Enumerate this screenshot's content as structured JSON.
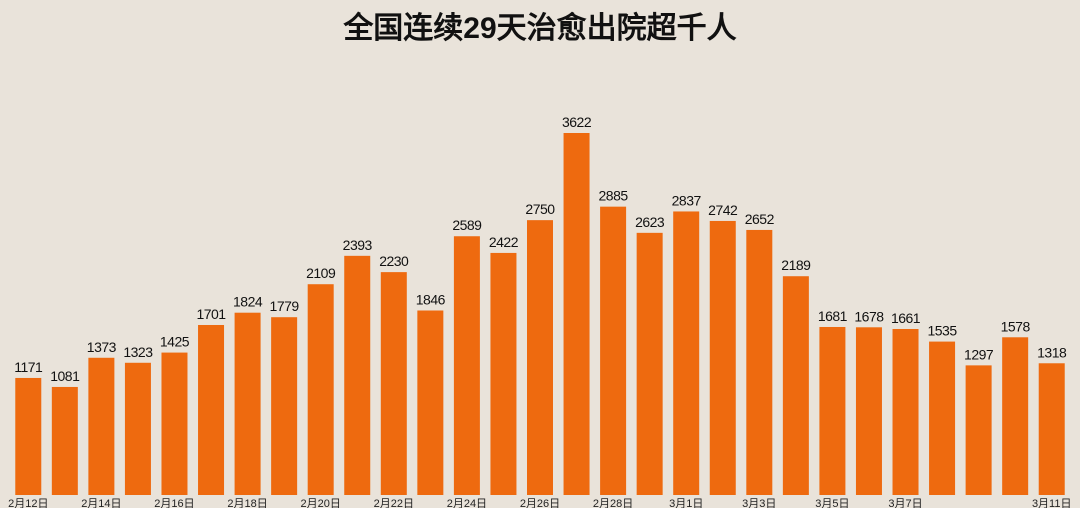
{
  "chart_data": {
    "type": "bar",
    "title": "全国连续29天治愈出院超千人",
    "categories": [
      "2月12日",
      null,
      "2月14日",
      null,
      "2月16日",
      null,
      "2月18日",
      null,
      "2月20日",
      null,
      "2月22日",
      null,
      "2月24日",
      null,
      "2月26日",
      null,
      "2月28日",
      null,
      "3月1日",
      null,
      "3月3日",
      null,
      "3月5日",
      null,
      "3月7日",
      null,
      null,
      null,
      "3月11日"
    ],
    "values": [
      1171,
      1081,
      1373,
      1323,
      1425,
      1701,
      1824,
      1779,
      2109,
      2393,
      2230,
      1846,
      2589,
      2422,
      2750,
      3622,
      2885,
      2623,
      2837,
      2742,
      2652,
      2189,
      1681,
      1678,
      1661,
      1535,
      1297,
      1578,
      1318
    ],
    "color": "#ee6a0f"
  }
}
